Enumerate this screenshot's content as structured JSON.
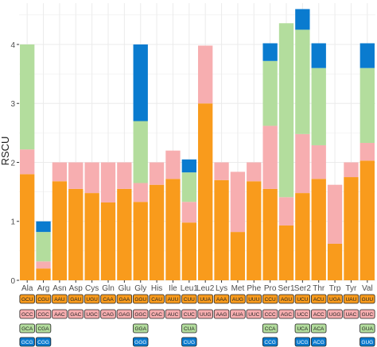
{
  "chart_data": {
    "type": "bar",
    "stacked": true,
    "ylabel": "RSCU",
    "ylim": [
      0,
      4.7
    ],
    "yticks": [
      0,
      1,
      2,
      3,
      4
    ],
    "grid": true,
    "categories": [
      "Ala",
      "Arg",
      "Asn",
      "Asp",
      "Cys",
      "Gln",
      "Glu",
      "Gly",
      "His",
      "Ile",
      "Leu1",
      "Leu2",
      "Lys",
      "Met",
      "Phe",
      "Pro",
      "Ser1",
      "Ser2",
      "Thr",
      "Trp",
      "Tyr",
      "Val"
    ],
    "colors": [
      "#f99b1c",
      "#f7aeb0",
      "#b3dd9d",
      "#0a7bcf"
    ],
    "series": [
      {
        "values": [
          1.8,
          0.2,
          1.68,
          1.55,
          1.48,
          1.32,
          1.55,
          1.33,
          1.62,
          1.72,
          0.98,
          3.0,
          1.7,
          0.82,
          1.68,
          1.55,
          0.93,
          1.48,
          1.72,
          0.62,
          1.75,
          2.03
        ]
      },
      {
        "values": [
          0.42,
          0.12,
          0.32,
          0.45,
          0.52,
          0.68,
          0.45,
          0.32,
          0.38,
          0.48,
          0.35,
          0.98,
          0.3,
          1.02,
          0.32,
          1.07,
          0.48,
          1.0,
          0.57,
          1.0,
          0.25,
          0.3
        ]
      },
      {
        "values": [
          1.78,
          0.5,
          0,
          0,
          0,
          0,
          0,
          1.05,
          0,
          0,
          0.5,
          0,
          0,
          0,
          0,
          1.1,
          2.95,
          1.77,
          1.31,
          0,
          0,
          1.27
        ]
      },
      {
        "values": [
          0,
          0.18,
          0,
          0,
          0,
          0,
          0,
          1.3,
          0,
          0,
          0.22,
          0,
          0,
          0,
          0,
          0.3,
          0,
          0.35,
          0.42,
          0,
          0,
          0.42
        ]
      }
    ],
    "codon_rows": [
      [
        "GCU",
        "CGU",
        "AAU",
        "GAU",
        "UGU",
        "CAA",
        "GAA",
        "GGU",
        "CAU",
        "AUU",
        "CUU",
        "UUA",
        "AAA",
        "AUG",
        "UUU",
        "CCU",
        "AGU",
        "UCU",
        "ACU",
        "UGA",
        "UAU",
        "GUU"
      ],
      [
        "GCC",
        "CGC",
        "AAC",
        "GAC",
        "UGC",
        "CAG",
        "GAG",
        "GGC",
        "CAC",
        "AUC",
        "CUC",
        "UUG",
        "AAG",
        "AUA",
        "UUC",
        "CCC",
        "AGC",
        "UCC",
        "ACC",
        "UGG",
        "UAC",
        "GUC"
      ],
      [
        "GCA",
        "CGA",
        "",
        "",
        "",
        "",
        "",
        "GGA",
        "",
        "",
        "CUA",
        "",
        "",
        "",
        "",
        "CCA",
        "",
        "UCA",
        "ACA",
        "",
        "",
        "GUA"
      ],
      [
        "GCG",
        "CGG",
        "",
        "",
        "",
        "",
        "",
        "GGG",
        "",
        "",
        "CUG",
        "",
        "",
        "",
        "",
        "CCG",
        "",
        "UCG",
        "ACG",
        "",
        "",
        "GUG"
      ]
    ]
  }
}
